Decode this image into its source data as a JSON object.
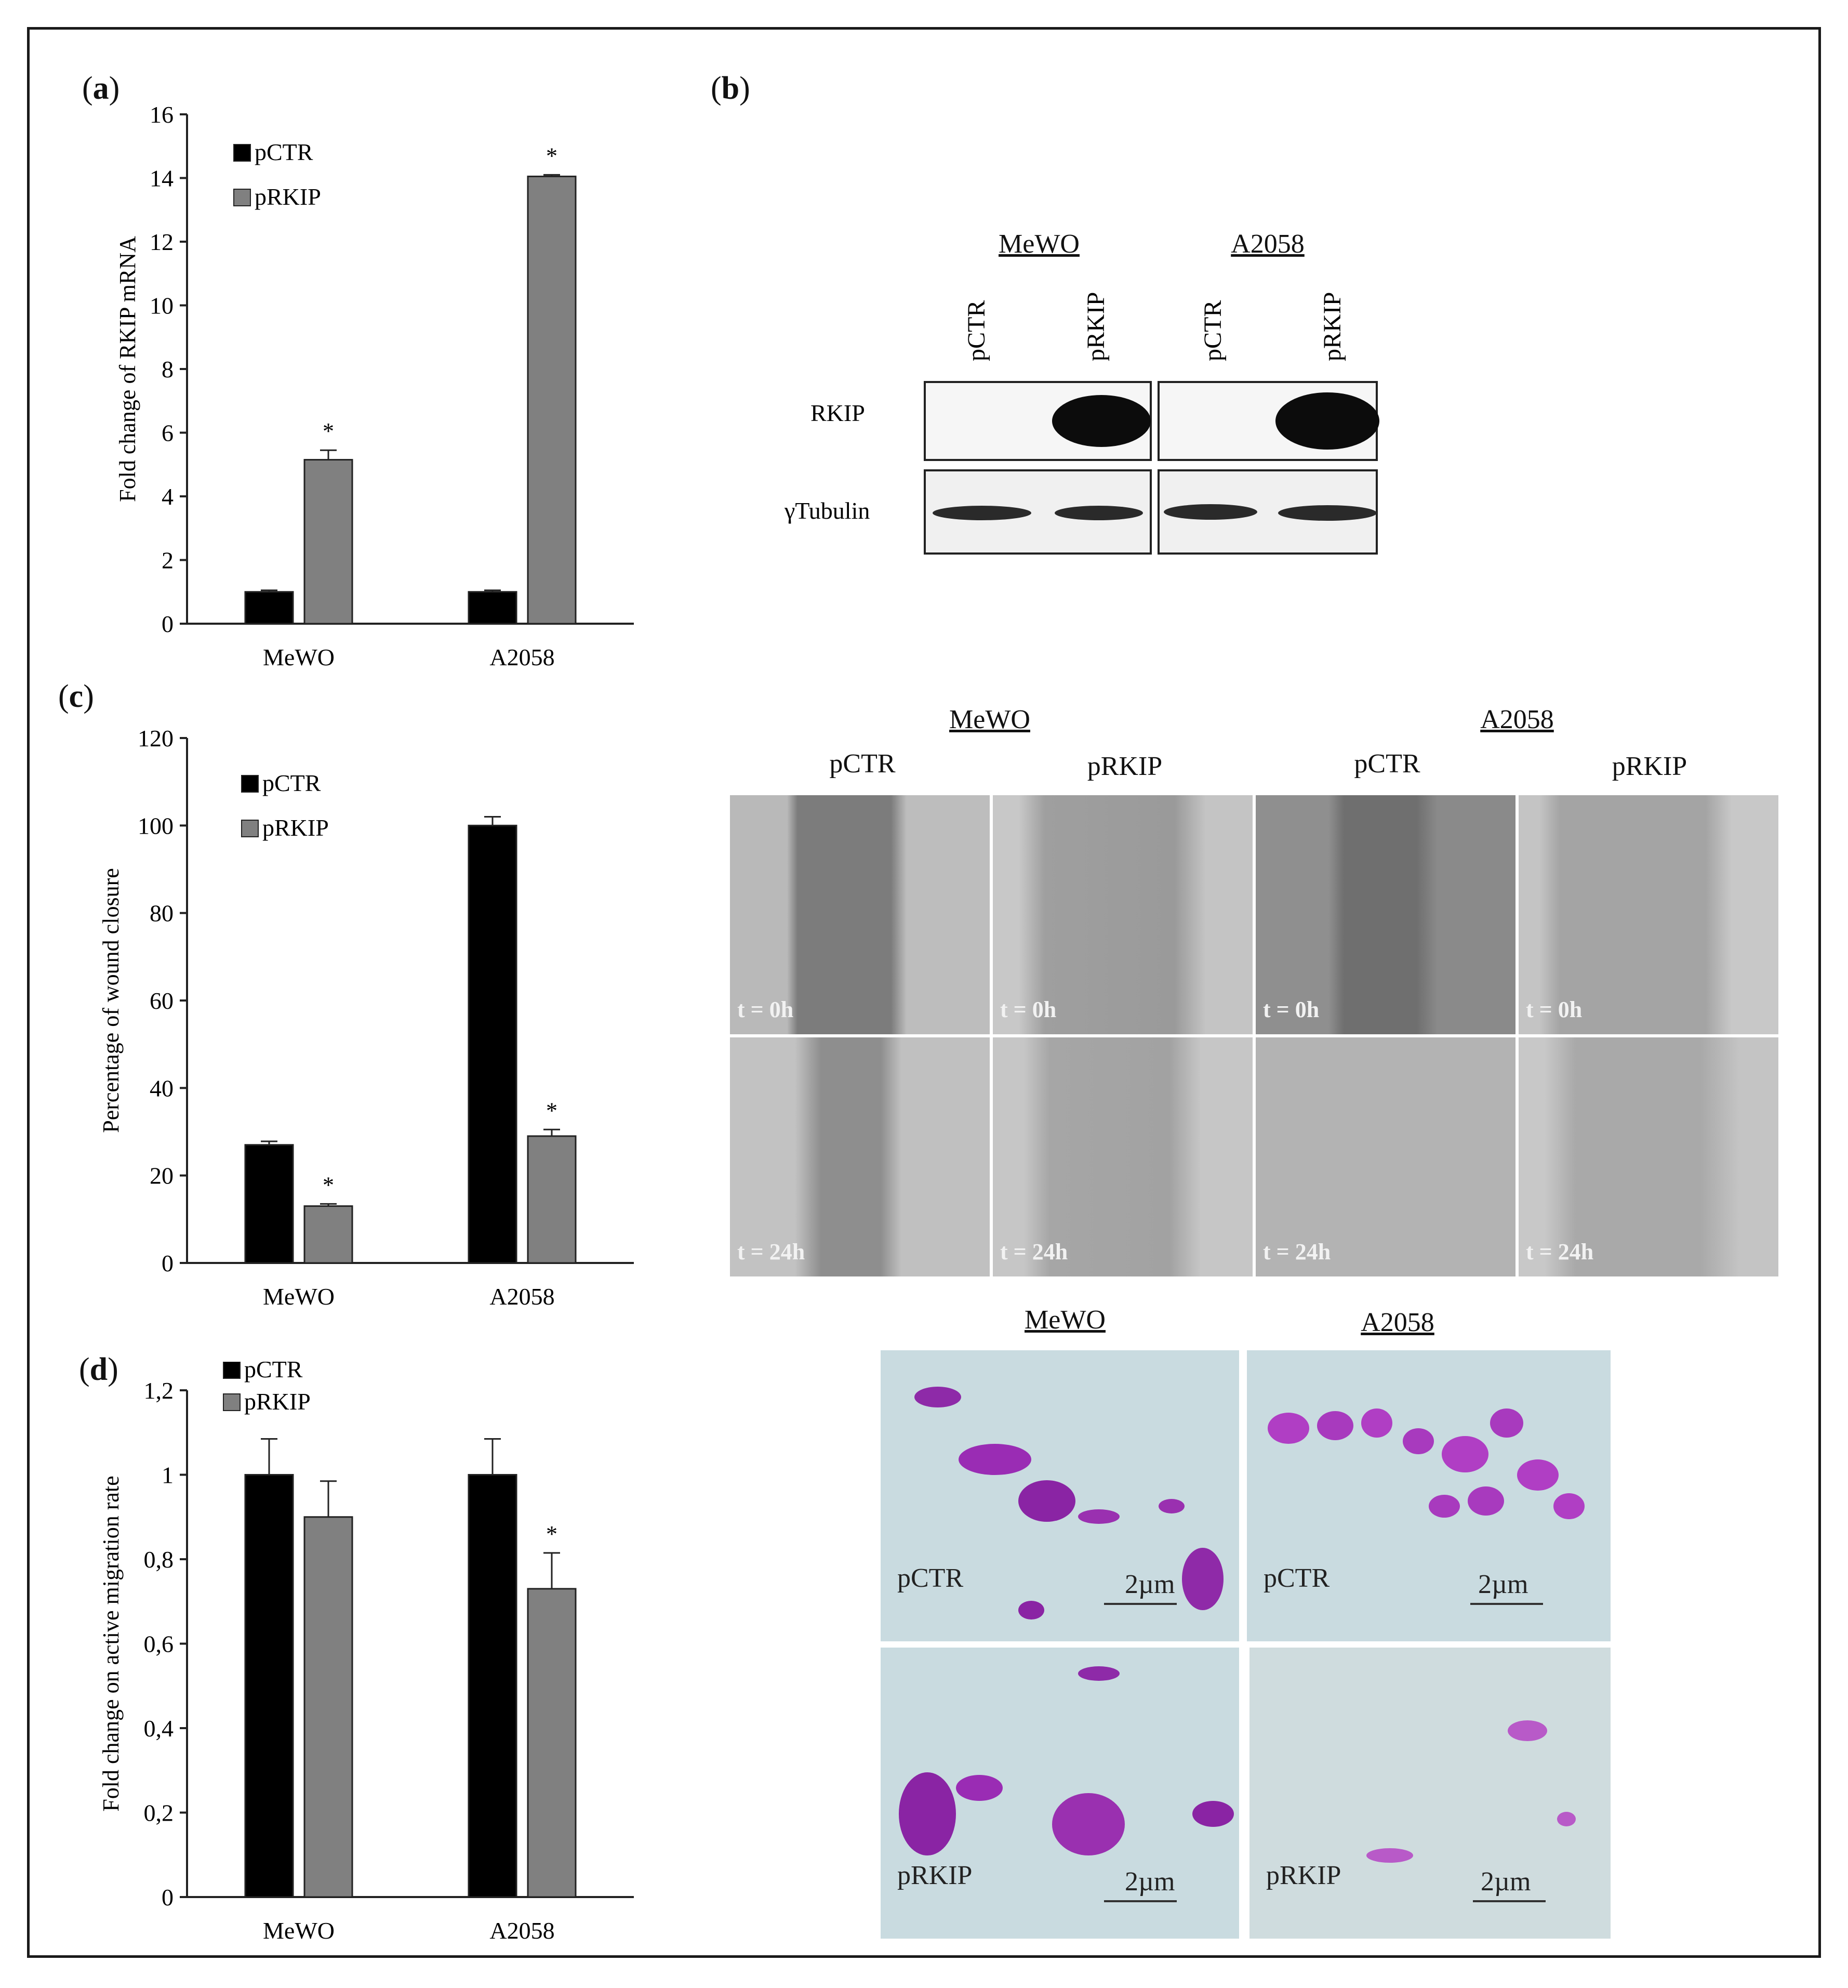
{
  "panels": {
    "a": {
      "label": "a"
    },
    "b": {
      "label": "b"
    },
    "c": {
      "label": "c"
    },
    "d": {
      "label": "d"
    }
  },
  "chart_data": [
    {
      "type": "bar",
      "panel": "a",
      "ylabel": "Fold change of RKIP mRNA",
      "categories": [
        "MeWO",
        "A2058"
      ],
      "ylim": [
        0,
        16
      ],
      "yticks": [
        "0",
        "2",
        "4",
        "6",
        "8",
        "10",
        "12",
        "14",
        "16"
      ],
      "series": [
        {
          "name": "pCTR",
          "values": [
            1,
            1
          ],
          "errors": [
            0.05,
            0.05
          ],
          "color": "#000000"
        },
        {
          "name": "pRKIP",
          "values": [
            5.15,
            14.05
          ],
          "errors": [
            0.3,
            0.05
          ],
          "color": "#808080"
        }
      ],
      "significance": [
        "*",
        "*"
      ],
      "legend": "top-left"
    },
    {
      "type": "bar",
      "panel": "c",
      "ylabel": "Percentage of wound closure",
      "categories": [
        "MeWO",
        "A2058"
      ],
      "ylim": [
        0,
        120
      ],
      "yticks": [
        "0",
        "20",
        "40",
        "60",
        "80",
        "100",
        "120"
      ],
      "series": [
        {
          "name": "pCTR",
          "values": [
            27,
            100
          ],
          "errors": [
            0.8,
            2
          ],
          "color": "#000000"
        },
        {
          "name": "pRKIP",
          "values": [
            13,
            29
          ],
          "errors": [
            0.5,
            1.5
          ],
          "color": "#808080"
        }
      ],
      "significance": [
        "*",
        "*"
      ],
      "legend": "top-left"
    },
    {
      "type": "bar",
      "panel": "d",
      "ylabel": "Fold change on active migration rate",
      "categories": [
        "MeWO",
        "A2058"
      ],
      "ylim": [
        0,
        1.2
      ],
      "yticks": [
        "0",
        "0,2",
        "0,4",
        "0,6",
        "0,8",
        "1",
        "1,2"
      ],
      "series": [
        {
          "name": "pCTR",
          "values": [
            1,
            1
          ],
          "errors": [
            0.085,
            0.085
          ],
          "color": "#000000"
        },
        {
          "name": "pRKIP",
          "values": [
            0.9,
            0.73
          ],
          "errors": [
            0.085,
            0.085
          ],
          "color": "#808080"
        }
      ],
      "significance": [
        "",
        "*"
      ],
      "legend": "top-left"
    }
  ],
  "western_blot": {
    "cell_lines": [
      "MeWO",
      "A2058"
    ],
    "lanes": [
      "pCTR",
      "pRKIP",
      "pCTR",
      "pRKIP"
    ],
    "rows": [
      "RKIP",
      "γTubulin"
    ]
  },
  "wound_assay": {
    "cell_lines": [
      "MeWO",
      "A2058"
    ],
    "columns": [
      "pCTR",
      "pRKIP",
      "pCTR",
      "pRKIP"
    ],
    "timepoints": [
      "t = 0h",
      "t = 24h"
    ]
  },
  "transwell": {
    "cell_lines": [
      "MeWO",
      "A2058"
    ],
    "rows": [
      "pCTR",
      "pRKIP"
    ],
    "scale_bar": "2µm"
  }
}
